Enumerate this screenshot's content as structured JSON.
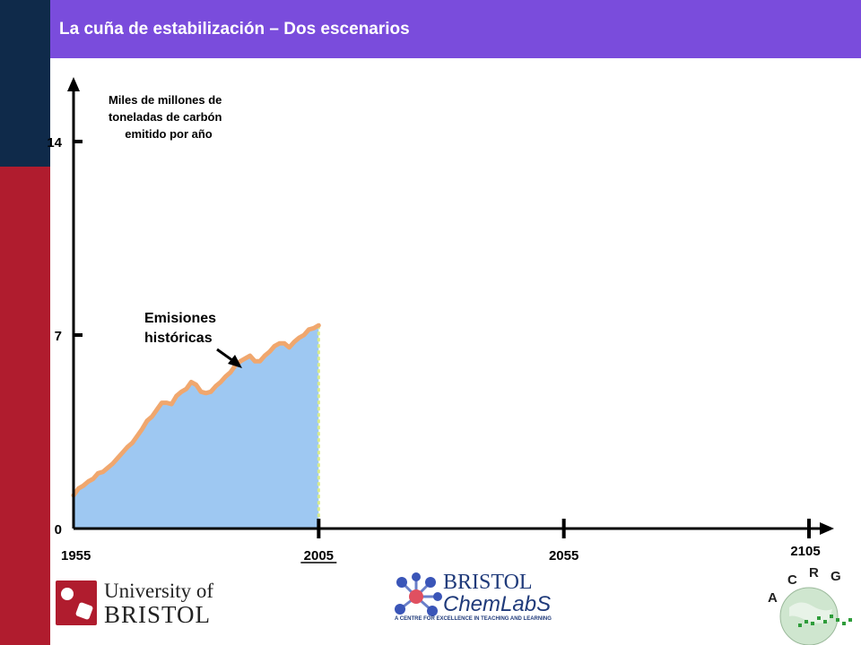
{
  "slide": {
    "title": "La cuña de estabilización – Dos escenarios",
    "colors": {
      "title_bg": "#7a4cdc",
      "side_dark": "#0f2a4a",
      "side_red": "#b01c2e"
    }
  },
  "chart_data": {
    "type": "area",
    "ylabel_lines": [
      "Miles de millones de",
      "toneladas de carbón",
      "emitido por año"
    ],
    "ylim": [
      0,
      14
    ],
    "y_ticks": [
      {
        "value": 0,
        "label": "0"
      },
      {
        "value": 7,
        "label": "7"
      },
      {
        "value": 14,
        "label": "14"
      }
    ],
    "xlim": [
      1955,
      2105
    ],
    "x_ticks": [
      {
        "value": 1955,
        "label": "1955",
        "underline": false
      },
      {
        "value": 2005,
        "label": "2005",
        "underline": true
      },
      {
        "value": 2055,
        "label": "2055",
        "underline": false
      },
      {
        "value": 2105,
        "label": "2105",
        "underline": false
      }
    ],
    "annotation_lines": [
      "Emisiones",
      "históricas"
    ],
    "series": [
      {
        "x": [
          1955,
          1956,
          1957,
          1958,
          1959,
          1960,
          1961,
          1962,
          1963,
          1964,
          1965,
          1966,
          1967,
          1968,
          1969,
          1970,
          1971,
          1972,
          1973,
          1974,
          1975,
          1976,
          1977,
          1978,
          1979,
          1980,
          1981,
          1982,
          1983,
          1984,
          1985,
          1986,
          1987,
          1988,
          1989,
          1990,
          1991,
          1992,
          1993,
          1994,
          1995,
          1996,
          1997,
          1998,
          1999,
          2000,
          2001,
          2002,
          2003,
          2004,
          2005
        ],
        "y": [
          1.2,
          1.45,
          1.55,
          1.7,
          1.8,
          2.0,
          2.05,
          2.2,
          2.35,
          2.55,
          2.75,
          2.95,
          3.1,
          3.35,
          3.6,
          3.9,
          4.05,
          4.3,
          4.55,
          4.55,
          4.5,
          4.8,
          4.95,
          5.05,
          5.3,
          5.2,
          4.95,
          4.9,
          4.95,
          5.15,
          5.3,
          5.5,
          5.65,
          5.9,
          6.05,
          6.15,
          6.25,
          6.05,
          6.05,
          6.25,
          6.4,
          6.6,
          6.7,
          6.7,
          6.55,
          6.75,
          6.9,
          7.0,
          7.2,
          7.25,
          7.35
        ],
        "fill": "#9ec8f2",
        "stroke": "#f0a76e"
      }
    ]
  }
}
